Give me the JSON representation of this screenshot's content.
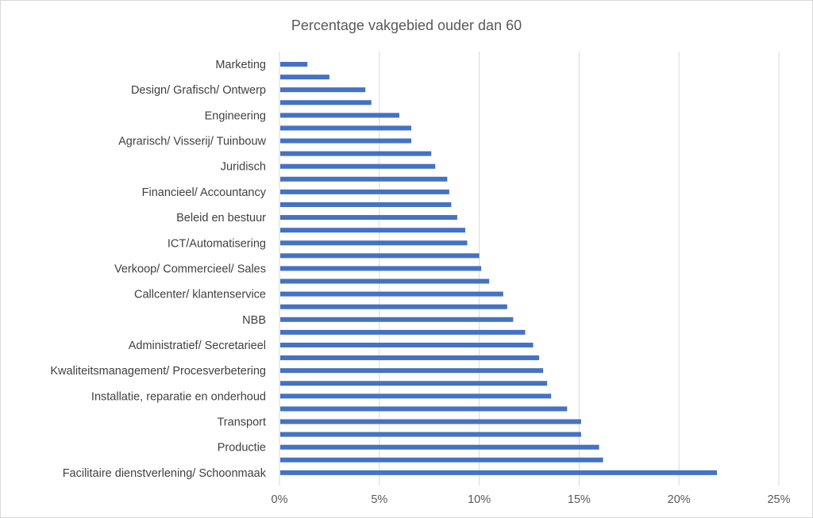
{
  "chart_data": {
    "type": "bar",
    "orientation": "horizontal",
    "title": "Percentage vakgebied ouder dan 60",
    "xlabel": "",
    "ylabel": "",
    "xlim": [
      0,
      0.25
    ],
    "x_ticks": [
      0,
      0.05,
      0.1,
      0.15,
      0.2,
      0.25
    ],
    "x_tick_labels": [
      "0%",
      "5%",
      "10%",
      "15%",
      "20%",
      "25%"
    ],
    "grid": "vertical",
    "bar_color": "#4472c4",
    "categories": [
      "Marketing",
      "",
      "Design/ Grafisch/ Ontwerp",
      "",
      "Engineering",
      "",
      "Agrarisch/ Visserij/ Tuinbouw",
      "",
      "Juridisch",
      "",
      "Financieel/ Accountancy",
      "",
      "Beleid en bestuur",
      "",
      "ICT/Automatisering",
      "",
      "Verkoop/ Commercieel/ Sales",
      "",
      "Callcenter/ klantenservice",
      "",
      "NBB",
      "",
      "Administratief/ Secretarieel",
      "",
      "Kwaliteitsmanagement/ Procesverbetering",
      "",
      "Installatie, reparatie en onderhoud",
      "",
      "Transport",
      "",
      "Productie",
      "",
      "Facilitaire dienstverlening/ Schoonmaak"
    ],
    "values": [
      0.014,
      0.025,
      0.043,
      0.046,
      0.06,
      0.066,
      0.066,
      0.076,
      0.078,
      0.084,
      0.085,
      0.086,
      0.089,
      0.093,
      0.094,
      0.1,
      0.101,
      0.105,
      0.112,
      0.114,
      0.117,
      0.123,
      0.127,
      0.13,
      0.132,
      0.134,
      0.136,
      0.144,
      0.151,
      0.151,
      0.16,
      0.162,
      0.219
    ]
  }
}
